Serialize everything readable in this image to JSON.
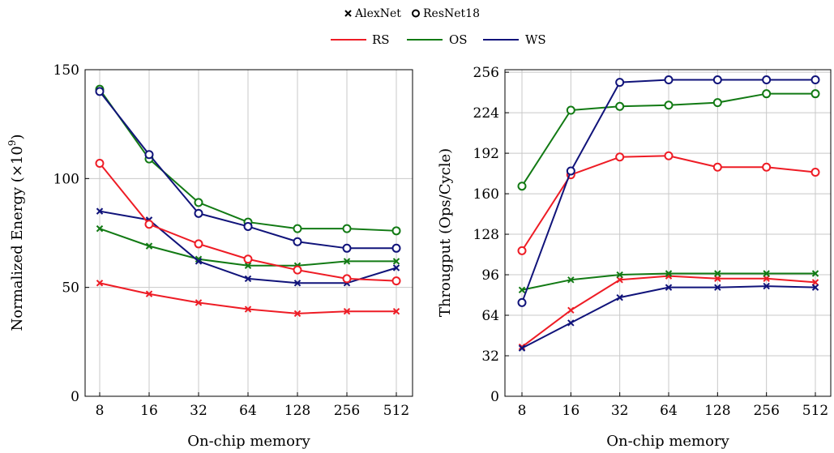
{
  "legend": {
    "markers": [
      {
        "symbol": "cross",
        "label": "AlexNet"
      },
      {
        "symbol": "circle",
        "label": "ResNet18"
      }
    ],
    "lines": [
      {
        "label": "RS",
        "color": "#ee1c25"
      },
      {
        "label": "OS",
        "color": "#127a14"
      },
      {
        "label": "WS",
        "color": "#10137a"
      }
    ]
  },
  "chart_data": [
    {
      "type": "line",
      "xlabel": "On-chip memory",
      "ylabel": "Normalized Energy (×10⁹)",
      "ylabel_main": "Normalized Energy (×10",
      "ylabel_exp": "9",
      "ylabel_tail": ")",
      "categories": [
        "8",
        "16",
        "32",
        "64",
        "128",
        "256",
        "512"
      ],
      "ylim": [
        0,
        150
      ],
      "yticks": [
        0,
        50,
        100,
        150
      ],
      "grid": true,
      "series": [
        {
          "name": "RS",
          "network": "AlexNet",
          "marker": "cross",
          "color": "#ee1c25",
          "values": [
            52,
            47,
            43,
            40,
            38,
            39,
            39
          ]
        },
        {
          "name": "OS",
          "network": "AlexNet",
          "marker": "cross",
          "color": "#127a14",
          "values": [
            77,
            69,
            63,
            60,
            60,
            62,
            62
          ]
        },
        {
          "name": "WS",
          "network": "AlexNet",
          "marker": "cross",
          "color": "#10137a",
          "values": [
            85,
            81,
            62,
            54,
            52,
            52,
            59
          ]
        },
        {
          "name": "RS",
          "network": "ResNet18",
          "marker": "circle",
          "color": "#ee1c25",
          "values": [
            107,
            79,
            70,
            63,
            58,
            54,
            53
          ]
        },
        {
          "name": "OS",
          "network": "ResNet18",
          "marker": "circle",
          "color": "#127a14",
          "values": [
            141,
            109,
            89,
            80,
            77,
            77,
            76
          ]
        },
        {
          "name": "WS",
          "network": "ResNet18",
          "marker": "circle",
          "color": "#10137a",
          "values": [
            140,
            111,
            84,
            78,
            71,
            68,
            68
          ]
        }
      ]
    },
    {
      "type": "line",
      "xlabel": "On-chip memory",
      "ylabel": "Througput (Ops/Cycle)",
      "categories": [
        "8",
        "16",
        "32",
        "64",
        "128",
        "256",
        "512"
      ],
      "ylim": [
        0,
        258
      ],
      "yticks": [
        0,
        32,
        64,
        96,
        128,
        160,
        192,
        224,
        256
      ],
      "grid": true,
      "series": [
        {
          "name": "RS",
          "network": "AlexNet",
          "marker": "cross",
          "color": "#ee1c25",
          "values": [
            39,
            68,
            92,
            95,
            93,
            93,
            90
          ]
        },
        {
          "name": "OS",
          "network": "AlexNet",
          "marker": "cross",
          "color": "#127a14",
          "values": [
            84,
            92,
            96,
            97,
            97,
            97,
            97
          ]
        },
        {
          "name": "WS",
          "network": "AlexNet",
          "marker": "cross",
          "color": "#10137a",
          "values": [
            38,
            58,
            78,
            86,
            86,
            87,
            86
          ]
        },
        {
          "name": "RS",
          "network": "ResNet18",
          "marker": "circle",
          "color": "#ee1c25",
          "values": [
            115,
            175,
            189,
            190,
            181,
            181,
            177
          ]
        },
        {
          "name": "OS",
          "network": "ResNet18",
          "marker": "circle",
          "color": "#127a14",
          "values": [
            166,
            226,
            229,
            230,
            232,
            239,
            239
          ]
        },
        {
          "name": "WS",
          "network": "ResNet18",
          "marker": "circle",
          "color": "#10137a",
          "values": [
            74,
            178,
            248,
            250,
            250,
            250,
            250
          ]
        }
      ]
    }
  ]
}
